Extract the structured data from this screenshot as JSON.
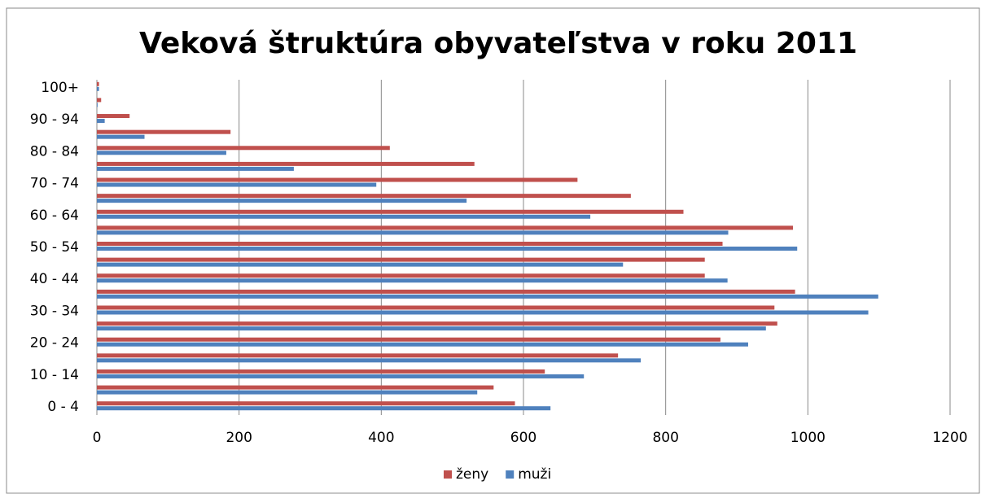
{
  "chart_data": {
    "type": "hbar",
    "title": "Veková štruktúra obyvateľstva v roku 2011",
    "categories": [
      "0 - 4",
      null,
      "10 - 14",
      null,
      "20 - 24",
      null,
      "30 - 34",
      null,
      "40 - 44",
      null,
      "50 - 54",
      null,
      "60 - 64",
      null,
      "70 - 74",
      null,
      "80 - 84",
      null,
      "90 - 94",
      null,
      "100+"
    ],
    "series": [
      {
        "name": "ženy",
        "color": "#c0504d",
        "values": [
          588,
          558,
          630,
          733,
          877,
          957,
          953,
          982,
          855,
          855,
          880,
          979,
          825,
          751,
          676,
          531,
          412,
          188,
          46,
          6,
          3
        ]
      },
      {
        "name": "muži",
        "color": "#4f81bd",
        "values": [
          638,
          535,
          685,
          765,
          916,
          941,
          1085,
          1099,
          887,
          740,
          985,
          888,
          694,
          520,
          393,
          277,
          182,
          67,
          11,
          1,
          3
        ]
      }
    ],
    "xlim": [
      0,
      1200
    ],
    "xticks": [
      0,
      200,
      400,
      600,
      800,
      1000,
      1200
    ],
    "grid": true,
    "legend": "bottom"
  }
}
